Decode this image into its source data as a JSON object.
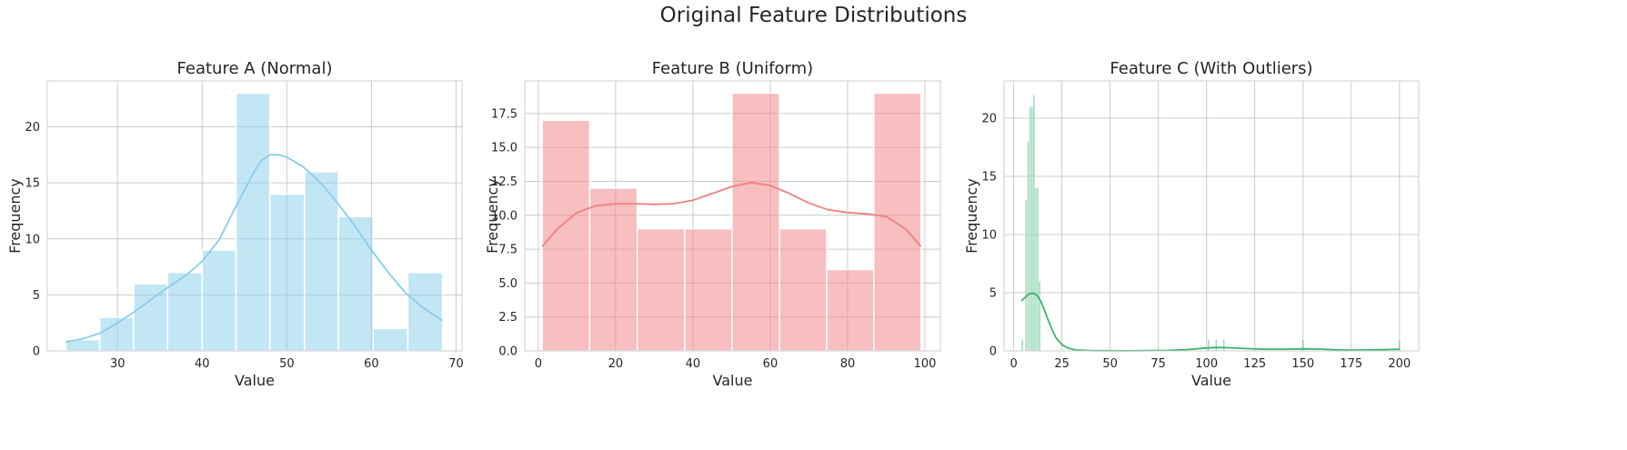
{
  "suptitle": "Original Feature Distributions",
  "chart_data": [
    {
      "type": "bar",
      "title": "Feature A (Normal)",
      "xlabel": "Value",
      "ylabel": "Frequency",
      "color": "#87ceeb",
      "xlim": [
        21.7,
        70.7
      ],
      "ylim": [
        0,
        24.1
      ],
      "xticks": [
        30,
        40,
        50,
        60,
        70
      ],
      "yticks": [
        0,
        5,
        10,
        15,
        20
      ],
      "bins": [
        {
          "x0": 23.9,
          "x1": 27.9,
          "count": 1
        },
        {
          "x0": 27.9,
          "x1": 31.9,
          "count": 3
        },
        {
          "x0": 31.9,
          "x1": 35.9,
          "count": 6
        },
        {
          "x0": 35.9,
          "x1": 40.0,
          "count": 7
        },
        {
          "x0": 40.0,
          "x1": 44.0,
          "count": 9
        },
        {
          "x0": 44.0,
          "x1": 48.0,
          "count": 23
        },
        {
          "x0": 48.0,
          "x1": 52.1,
          "count": 14
        },
        {
          "x0": 52.1,
          "x1": 56.1,
          "count": 16
        },
        {
          "x0": 56.1,
          "x1": 60.2,
          "count": 12
        },
        {
          "x0": 60.2,
          "x1": 64.3,
          "count": 2
        },
        {
          "x0": 64.3,
          "x1": 68.4,
          "count": 7
        }
      ],
      "kde": [
        [
          23.9,
          0.8
        ],
        [
          26,
          1.1
        ],
        [
          28,
          1.6
        ],
        [
          30,
          2.5
        ],
        [
          32,
          3.5
        ],
        [
          34,
          4.6
        ],
        [
          36,
          5.7
        ],
        [
          38,
          6.7
        ],
        [
          40,
          8.0
        ],
        [
          42,
          9.9
        ],
        [
          44,
          12.9
        ],
        [
          46,
          15.8
        ],
        [
          47,
          17.0
        ],
        [
          48,
          17.5
        ],
        [
          49,
          17.5
        ],
        [
          50,
          17.3
        ],
        [
          52,
          16.4
        ],
        [
          54,
          15.0
        ],
        [
          56,
          13.2
        ],
        [
          58,
          11.2
        ],
        [
          60,
          9.0
        ],
        [
          62,
          7.0
        ],
        [
          64,
          5.2
        ],
        [
          66,
          3.9
        ],
        [
          68.4,
          2.7
        ]
      ]
    },
    {
      "type": "bar",
      "title": "Feature B (Uniform)",
      "xlabel": "Value",
      "ylabel": "Frequency",
      "color": "#f08080",
      "xlim": [
        -3.5,
        104
      ],
      "ylim": [
        0,
        19.9
      ],
      "xticks": [
        0,
        20,
        40,
        60,
        80,
        100
      ],
      "yticks": [
        0.0,
        2.5,
        5.0,
        7.5,
        10.0,
        12.5,
        15.0,
        17.5
      ],
      "ytick_labels": [
        "0.0",
        "2.5",
        "5.0",
        "7.5",
        "10.0",
        "12.5",
        "15.0",
        "17.5"
      ],
      "bins": [
        {
          "x0": 1.0,
          "x1": 13.3,
          "count": 17
        },
        {
          "x0": 13.3,
          "x1": 25.6,
          "count": 12
        },
        {
          "x0": 25.6,
          "x1": 37.9,
          "count": 9
        },
        {
          "x0": 37.9,
          "x1": 50.1,
          "count": 9
        },
        {
          "x0": 50.1,
          "x1": 62.4,
          "count": 19
        },
        {
          "x0": 62.4,
          "x1": 74.6,
          "count": 9
        },
        {
          "x0": 74.6,
          "x1": 86.8,
          "count": 6
        },
        {
          "x0": 86.8,
          "x1": 99.0,
          "count": 19
        }
      ],
      "kde": [
        [
          1,
          7.7
        ],
        [
          5,
          9.0
        ],
        [
          10,
          10.2
        ],
        [
          15,
          10.7
        ],
        [
          20,
          10.85
        ],
        [
          25,
          10.85
        ],
        [
          30,
          10.8
        ],
        [
          35,
          10.85
        ],
        [
          40,
          11.1
        ],
        [
          45,
          11.6
        ],
        [
          50,
          12.1
        ],
        [
          55,
          12.4
        ],
        [
          60,
          12.2
        ],
        [
          65,
          11.6
        ],
        [
          70,
          10.9
        ],
        [
          75,
          10.4
        ],
        [
          80,
          10.2
        ],
        [
          85,
          10.1
        ],
        [
          90,
          9.9
        ],
        [
          95,
          9.0
        ],
        [
          99,
          7.7
        ]
      ]
    },
    {
      "type": "bar",
      "title": "Feature C (With Outliers)",
      "xlabel": "Value",
      "ylabel": "Frequency",
      "color": "#3cb371",
      "xlim": [
        -5,
        210
      ],
      "ylim": [
        0,
        23.2
      ],
      "xticks": [
        0,
        25,
        50,
        75,
        100,
        125,
        150,
        175,
        200
      ],
      "yticks": [
        0,
        5,
        10,
        15,
        20
      ],
      "bins": [
        {
          "x0": 4.0,
          "x1": 5.0,
          "count": 1
        },
        {
          "x0": 6.0,
          "x1": 7.0,
          "count": 13
        },
        {
          "x0": 7.0,
          "x1": 8.0,
          "count": 18
        },
        {
          "x0": 8.0,
          "x1": 9.0,
          "count": 21
        },
        {
          "x0": 9.0,
          "x1": 10.0,
          "count": 21
        },
        {
          "x0": 10.0,
          "x1": 11.0,
          "count": 22
        },
        {
          "x0": 11.0,
          "x1": 12.0,
          "count": 14
        },
        {
          "x0": 12.0,
          "x1": 13.0,
          "count": 14
        },
        {
          "x0": 13.0,
          "x1": 14.0,
          "count": 6
        },
        {
          "x0": 100.5,
          "x1": 101.5,
          "count": 1
        },
        {
          "x0": 104.5,
          "x1": 105.5,
          "count": 1
        },
        {
          "x0": 108.5,
          "x1": 109.5,
          "count": 1
        },
        {
          "x0": 149.5,
          "x1": 150.5,
          "count": 1
        },
        {
          "x0": 199.5,
          "x1": 200.5,
          "count": 1
        }
      ],
      "kde": [
        [
          4,
          4.3
        ],
        [
          6,
          4.6
        ],
        [
          8,
          4.9
        ],
        [
          10,
          4.95
        ],
        [
          12,
          4.8
        ],
        [
          14,
          4.3
        ],
        [
          16,
          3.5
        ],
        [
          18,
          2.6
        ],
        [
          20,
          1.8
        ],
        [
          22,
          1.1
        ],
        [
          25,
          0.55
        ],
        [
          28,
          0.25
        ],
        [
          32,
          0.08
        ],
        [
          40,
          0.02
        ],
        [
          60,
          0.01
        ],
        [
          80,
          0.05
        ],
        [
          90,
          0.12
        ],
        [
          100,
          0.25
        ],
        [
          105,
          0.3
        ],
        [
          110,
          0.28
        ],
        [
          120,
          0.2
        ],
        [
          130,
          0.15
        ],
        [
          140,
          0.15
        ],
        [
          150,
          0.18
        ],
        [
          160,
          0.15
        ],
        [
          170,
          0.08
        ],
        [
          180,
          0.08
        ],
        [
          190,
          0.1
        ],
        [
          200,
          0.15
        ]
      ]
    }
  ]
}
